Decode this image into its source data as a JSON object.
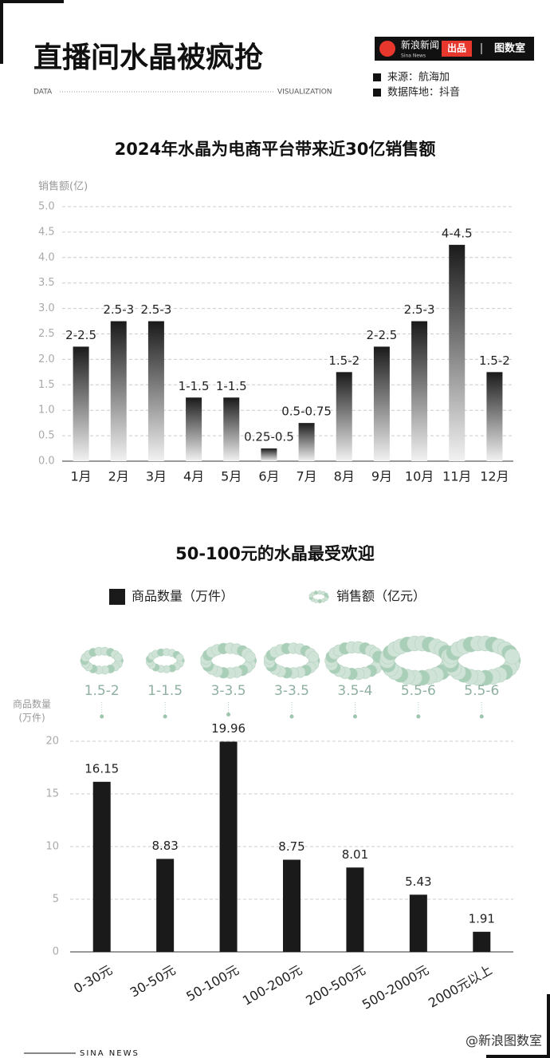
{
  "header": {
    "title": "直播间水晶被疯抢",
    "left_tag": "DATA",
    "right_tag": "VISUALIZATION",
    "brand": "新浪新闻",
    "brand_sub": "Sina News",
    "brand_tag": "出品",
    "studio": "图数室",
    "source": "来源：航海加",
    "data_source": "数据阵地：抖音"
  },
  "footer": {
    "left": "SINA NEWS",
    "right": "@新浪图数室"
  },
  "chart_data": [
    {
      "type": "bar",
      "title": "2024年水晶为电商平台带来近30亿销售额",
      "y_label": "销售额(亿)",
      "color": "#222222",
      "categories": [
        "1月",
        "2月",
        "3月",
        "4月",
        "5月",
        "6月",
        "7月",
        "8月",
        "9月",
        "10月",
        "11月",
        "12月"
      ],
      "values": [
        2.25,
        2.75,
        2.75,
        1.25,
        1.25,
        0.25,
        0.75,
        1.75,
        2.25,
        2.75,
        4.25,
        1.75
      ],
      "value_labels": [
        "2-2.5",
        "2.5-3",
        "2.5-3",
        "1-1.5",
        "1-1.5",
        "0.25-0.5",
        "0.5-0.75",
        "1.5-2",
        "2-2.5",
        "2.5-3",
        "4-4.5",
        "1.5-2"
      ],
      "ylim": [
        0,
        5
      ],
      "yticks": [
        {
          "value": 0,
          "label": "0.0"
        },
        0.5,
        {
          "value": 1,
          "label": "1.0"
        },
        1.5,
        {
          "value": 2,
          "label": "2.0"
        },
        2.5,
        {
          "value": 3,
          "label": "3.0"
        },
        3.5,
        {
          "value": 4,
          "label": "4.0"
        },
        4.5,
        {
          "value": 5,
          "label": "5.0"
        }
      ],
      "grid": true
    },
    {
      "type": "bar_bracelet",
      "title": "50-100元的水晶最受欢迎",
      "y_label": [
        "商品数量",
        "(万件)"
      ],
      "categories": [
        "0-30元",
        "30-50元",
        "50-100元",
        "100-200元",
        "200-500元",
        "500-2000元",
        "2000元以上"
      ],
      "series": [
        {
          "name": "商品数量（万件）",
          "color": "#1a1a1a",
          "values": [
            16.15,
            8.83,
            19.96,
            8.75,
            8.01,
            5.43,
            1.91
          ]
        },
        {
          "name": "销售额（亿元）",
          "color": "#9cc7ae",
          "values": [
            1.75,
            1.25,
            3.25,
            3.25,
            3.75,
            5.75,
            5.75
          ],
          "value_labels": [
            "1.5-2",
            "1-1.5",
            "3-3.5",
            "3-3.5",
            "3.5-4",
            "5.5-6",
            "5.5-6"
          ]
        }
      ],
      "ylim": [
        0,
        20
      ],
      "yticks": [
        0,
        5,
        10,
        15,
        20
      ],
      "grid": true
    }
  ]
}
